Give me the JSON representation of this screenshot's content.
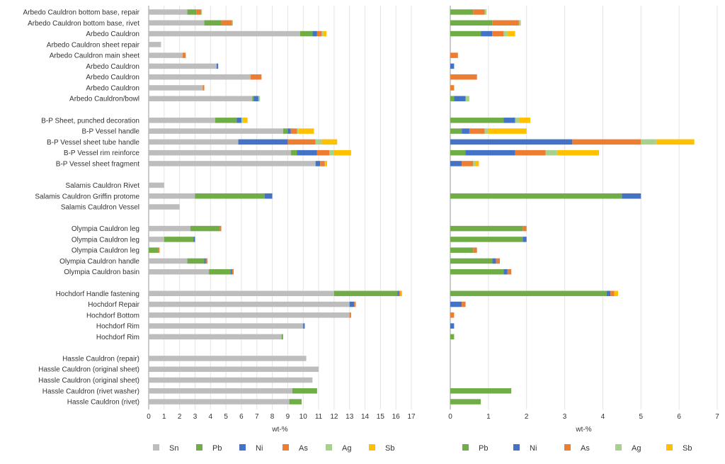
{
  "chart_data": [
    {
      "type": "bar",
      "orientation": "horizontal",
      "stacked": true,
      "xlabel": "wt-%",
      "xlim": [
        0,
        17
      ],
      "xticks": [
        0,
        1,
        2,
        3,
        4,
        5,
        6,
        7,
        8,
        9,
        10,
        11,
        12,
        13,
        14,
        15,
        16,
        17
      ],
      "grid": true,
      "legend_position": "bottom",
      "categories": [
        "Arbedo Cauldron bottom base, repair",
        "Arbedo Cauldron bottom base, rivet",
        "Arbedo Cauldron",
        "Arbedo Cauldron sheet repair",
        "Arbedo Cauldron main sheet",
        "Arbedo Cauldron",
        "Arbedo Cauldron",
        "Arbedo Cauldron",
        "Arbedo Cauldron/bowl",
        "",
        "B-P Sheet, punched decoration",
        "B-P Vessel handle",
        "B-P Vessel sheet tube handle",
        "B-P Vessel rim reinforce",
        "B-P Vessel sheet fragment",
        "",
        "Salamis Cauldron Rivet",
        "Salamis Cauldron Griffin protome",
        "Salamis Cauldron Vessel",
        "",
        "Olympia Cauldron leg",
        "Olympia Cauldron leg",
        "Olympia Cauldron leg",
        "Olympia Cauldron handle",
        "Olympia Cauldron basin",
        "",
        "Hochdorf Handle fastening",
        "Hochdorf Repair",
        "Hochdorf Bottom",
        "Hochdorf Rim",
        "Hochdorf Rim",
        "",
        "Hassle Cauldron (repair)",
        "Hassle Cauldron (original sheet)",
        "Hassle Cauldron (original sheet)",
        "Hassle Cauldron (rivet washer)",
        "Hassle Cauldron (rivet)"
      ],
      "series": [
        {
          "name": "Sn",
          "color": "#bdbdbd",
          "values": [
            2.5,
            3.6,
            9.8,
            0.8,
            2.2,
            4.4,
            6.6,
            3.5,
            6.7,
            null,
            4.3,
            8.7,
            5.8,
            9.2,
            10.8,
            null,
            1.0,
            3.0,
            2.0,
            null,
            2.7,
            1.0,
            0.0,
            2.5,
            3.9,
            null,
            12.0,
            13.0,
            13.0,
            10.0,
            8.6,
            null,
            10.2,
            11.0,
            10.6,
            9.3,
            9.1
          ]
        },
        {
          "name": "Pb",
          "color": "#70ad47",
          "values": [
            0.6,
            1.1,
            0.8,
            0.0,
            0.0,
            0.0,
            0.0,
            0.0,
            0.1,
            null,
            1.4,
            0.3,
            0.0,
            0.4,
            0.0,
            null,
            0.0,
            4.5,
            0.0,
            null,
            1.9,
            1.9,
            0.6,
            1.1,
            1.4,
            null,
            4.1,
            0.0,
            0.0,
            0.0,
            0.1,
            null,
            0.0,
            0.0,
            0.0,
            1.6,
            0.8
          ]
        },
        {
          "name": "Ni",
          "color": "#4472c4",
          "values": [
            0.0,
            0.0,
            0.3,
            0.0,
            0.0,
            0.1,
            0.0,
            0.0,
            0.3,
            null,
            0.3,
            0.2,
            3.2,
            1.3,
            0.3,
            null,
            0.0,
            0.5,
            0.0,
            null,
            0.0,
            0.1,
            0.0,
            0.1,
            0.1,
            null,
            0.1,
            0.3,
            0.0,
            0.1,
            0.0,
            null,
            0.0,
            0.0,
            0.0,
            0.0,
            0.0
          ]
        },
        {
          "name": "As",
          "color": "#ed7d31",
          "values": [
            0.3,
            0.7,
            0.3,
            0.0,
            0.2,
            0.0,
            0.7,
            0.1,
            0.0,
            null,
            0.0,
            0.4,
            1.8,
            0.8,
            0.3,
            null,
            0.0,
            0.0,
            0.0,
            null,
            0.1,
            0.0,
            0.1,
            0.1,
            0.1,
            null,
            0.1,
            0.1,
            0.1,
            0.0,
            0.0,
            null,
            0.0,
            0.0,
            0.0,
            0.0,
            0.0
          ]
        },
        {
          "name": "Ag",
          "color": "#a9d18e",
          "values": [
            0.05,
            0.05,
            0.1,
            0.0,
            0.0,
            0.0,
            0.0,
            0.0,
            0.1,
            null,
            0.1,
            0.1,
            0.4,
            0.3,
            0.05,
            null,
            0.0,
            0.0,
            0.0,
            null,
            0.0,
            0.0,
            0.0,
            0.0,
            0.0,
            null,
            0.0,
            0.0,
            0.0,
            0.0,
            0.0,
            null,
            0.0,
            0.0,
            0.0,
            0.0,
            0.0
          ]
        },
        {
          "name": "Sb",
          "color": "#ffc000",
          "values": [
            0.0,
            0.0,
            0.2,
            0.0,
            0.0,
            0.0,
            0.0,
            0.0,
            0.0,
            null,
            0.3,
            1.0,
            1.0,
            1.1,
            0.1,
            null,
            0.0,
            0.0,
            0.0,
            null,
            0.0,
            0.0,
            0.0,
            0.0,
            0.0,
            null,
            0.1,
            0.0,
            0.0,
            0.0,
            0.0,
            null,
            0.0,
            0.0,
            0.0,
            0.0,
            0.0
          ]
        }
      ]
    },
    {
      "type": "bar",
      "orientation": "horizontal",
      "stacked": true,
      "xlabel": "wt-%",
      "xlim": [
        0,
        7
      ],
      "xticks": [
        0,
        1,
        2,
        3,
        4,
        5,
        6,
        7
      ],
      "grid": true,
      "legend_position": "bottom",
      "note": "same row categories as the left panel (labels shared, not repeated)",
      "series": [
        {
          "name": "Pb",
          "color": "#70ad47",
          "values": [
            0.6,
            1.1,
            0.8,
            0.0,
            0.0,
            0.0,
            0.0,
            0.0,
            0.1,
            null,
            1.4,
            0.3,
            0.0,
            0.4,
            0.0,
            null,
            0.0,
            4.5,
            0.0,
            null,
            1.9,
            1.9,
            0.6,
            1.1,
            1.4,
            null,
            4.1,
            0.0,
            0.0,
            0.0,
            0.1,
            null,
            0.0,
            0.0,
            0.0,
            1.6,
            0.8
          ]
        },
        {
          "name": "Ni",
          "color": "#4472c4",
          "values": [
            0.0,
            0.0,
            0.3,
            0.0,
            0.0,
            0.1,
            0.0,
            0.0,
            0.3,
            null,
            0.3,
            0.2,
            3.2,
            1.3,
            0.3,
            null,
            0.0,
            0.5,
            0.0,
            null,
            0.0,
            0.1,
            0.0,
            0.1,
            0.1,
            null,
            0.1,
            0.3,
            0.0,
            0.1,
            0.0,
            null,
            0.0,
            0.0,
            0.0,
            0.0,
            0.0
          ]
        },
        {
          "name": "As",
          "color": "#ed7d31",
          "values": [
            0.3,
            0.7,
            0.3,
            0.0,
            0.2,
            0.0,
            0.7,
            0.1,
            0.0,
            null,
            0.0,
            0.4,
            1.8,
            0.8,
            0.3,
            null,
            0.0,
            0.0,
            0.0,
            null,
            0.1,
            0.0,
            0.1,
            0.1,
            0.1,
            null,
            0.1,
            0.1,
            0.1,
            0.0,
            0.0,
            null,
            0.0,
            0.0,
            0.0,
            0.0,
            0.0
          ]
        },
        {
          "name": "Ag",
          "color": "#a9d18e",
          "values": [
            0.05,
            0.05,
            0.1,
            0.0,
            0.0,
            0.0,
            0.0,
            0.0,
            0.1,
            null,
            0.1,
            0.1,
            0.4,
            0.3,
            0.05,
            null,
            0.0,
            0.0,
            0.0,
            null,
            0.0,
            0.0,
            0.0,
            0.0,
            0.0,
            null,
            0.0,
            0.0,
            0.0,
            0.0,
            0.0,
            null,
            0.0,
            0.0,
            0.0,
            0.0,
            0.0
          ]
        },
        {
          "name": "Sb",
          "color": "#ffc000",
          "values": [
            0.0,
            0.0,
            0.2,
            0.0,
            0.0,
            0.0,
            0.0,
            0.0,
            0.0,
            null,
            0.3,
            1.0,
            1.0,
            1.1,
            0.1,
            null,
            0.0,
            0.0,
            0.0,
            null,
            0.0,
            0.0,
            0.0,
            0.0,
            0.0,
            null,
            0.1,
            0.0,
            0.0,
            0.0,
            0.0,
            null,
            0.0,
            0.0,
            0.0,
            0.0,
            0.0
          ]
        }
      ]
    }
  ]
}
